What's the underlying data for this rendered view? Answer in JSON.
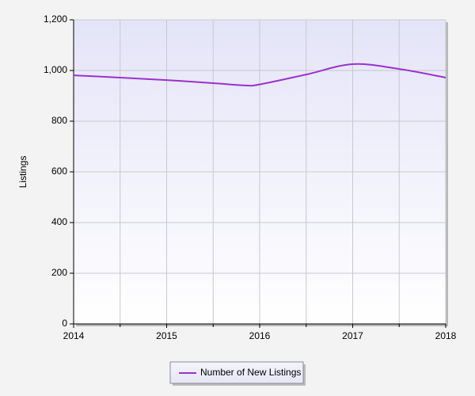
{
  "chart_data": {
    "type": "line",
    "y_label": "Listings",
    "x": [
      2014,
      2014.5,
      2015,
      2015.5,
      2015.85,
      2016,
      2016.5,
      2017,
      2017.5,
      2018
    ],
    "series": [
      {
        "name": "Number of New Listings",
        "color": "#9a32cd",
        "values": [
          981,
          972,
          962,
          950,
          941,
          945,
          984,
          1025,
          1006,
          972
        ]
      }
    ],
    "xlim": [
      2014,
      2018
    ],
    "xticks": [
      2014,
      2015,
      2016,
      2017,
      2018
    ],
    "ylim": [
      0,
      1200
    ],
    "yticks": [
      0,
      200,
      400,
      600,
      800,
      {
        "value": 1000,
        "label": "1,000"
      },
      {
        "value": 1200,
        "label": "1,200"
      }
    ],
    "grid": true
  }
}
